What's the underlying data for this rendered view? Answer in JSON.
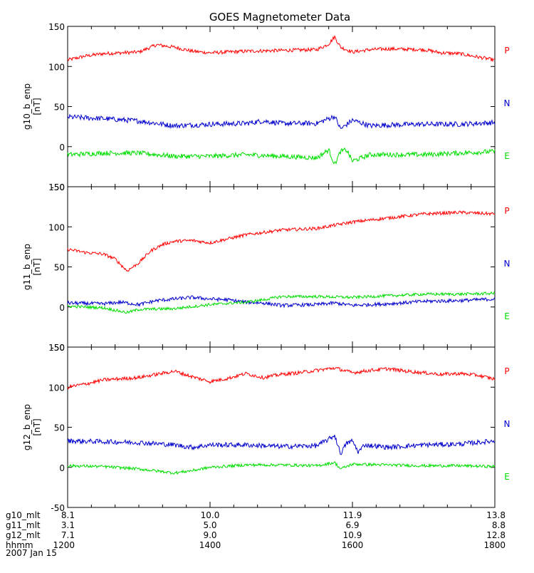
{
  "chart_data": {
    "type": "line",
    "title": "GOES Magnetometer Data",
    "date": "2007 Jan 15",
    "x_range_hhmm": [
      "1200",
      "1800"
    ],
    "panels": [
      {
        "ylabel": "g10_b_enp",
        "unit": "[nT]",
        "ylim": [
          -50,
          150
        ],
        "yticks": [
          "150",
          "100",
          "50",
          "0",
          "-50"
        ],
        "ytick_values": [
          150,
          100,
          50,
          0,
          -50
        ],
        "series": [
          {
            "name": "P",
            "color": "#ff0000",
            "noise": 2.2,
            "points": [
              [
                1200,
                108
              ],
              [
                1215,
                113
              ],
              [
                1230,
                116
              ],
              [
                1245,
                117
              ],
              [
                1300,
                118
              ],
              [
                1315,
                127
              ],
              [
                1330,
                124
              ],
              [
                1345,
                119
              ],
              [
                1400,
                117
              ],
              [
                1430,
                119
              ],
              [
                1500,
                120
              ],
              [
                1530,
                121
              ],
              [
                1540,
                128
              ],
              [
                1545,
                137
              ],
              [
                1550,
                124
              ],
              [
                1600,
                118
              ],
              [
                1615,
                121
              ],
              [
                1630,
                122
              ],
              [
                1700,
                121
              ],
              [
                1715,
                117
              ],
              [
                1730,
                116
              ],
              [
                1745,
                112
              ],
              [
                1800,
                108
              ]
            ]
          },
          {
            "name": "N",
            "color": "#0000cc",
            "noise": 3.2,
            "points": [
              [
                1200,
                37
              ],
              [
                1230,
                35
              ],
              [
                1300,
                32
              ],
              [
                1330,
                26
              ],
              [
                1400,
                28
              ],
              [
                1430,
                29
              ],
              [
                1445,
                32
              ],
              [
                1500,
                29
              ],
              [
                1530,
                29
              ],
              [
                1545,
                38
              ],
              [
                1550,
                22
              ],
              [
                1600,
                33
              ],
              [
                1615,
                26
              ],
              [
                1630,
                27
              ],
              [
                1700,
                28
              ],
              [
                1730,
                28
              ],
              [
                1800,
                30
              ]
            ]
          },
          {
            "name": "E",
            "color": "#00dd00",
            "noise": 3.0,
            "points": [
              [
                1200,
                -10
              ],
              [
                1230,
                -8
              ],
              [
                1300,
                -8
              ],
              [
                1330,
                -12
              ],
              [
                1400,
                -12
              ],
              [
                1430,
                -10
              ],
              [
                1500,
                -12
              ],
              [
                1530,
                -14
              ],
              [
                1540,
                -4
              ],
              [
                1545,
                -22
              ],
              [
                1550,
                -6
              ],
              [
                1555,
                -4
              ],
              [
                1600,
                -18
              ],
              [
                1615,
                -10
              ],
              [
                1630,
                -10
              ],
              [
                1700,
                -10
              ],
              [
                1730,
                -8
              ],
              [
                1800,
                -6
              ]
            ]
          }
        ]
      },
      {
        "ylabel": "g11_b_enp",
        "unit": "[nT]",
        "ylim": [
          -50,
          150
        ],
        "yticks": [
          "150",
          "100",
          "50",
          "0",
          "-50"
        ],
        "ytick_values": [
          150,
          100,
          50,
          0,
          -50
        ],
        "series": [
          {
            "name": "P",
            "color": "#ff0000",
            "noise": 2.0,
            "points": [
              [
                1200,
                72
              ],
              [
                1215,
                68
              ],
              [
                1230,
                66
              ],
              [
                1240,
                60
              ],
              [
                1250,
                45
              ],
              [
                1300,
                55
              ],
              [
                1310,
                70
              ],
              [
                1320,
                78
              ],
              [
                1330,
                82
              ],
              [
                1345,
                83
              ],
              [
                1400,
                80
              ],
              [
                1415,
                85
              ],
              [
                1430,
                90
              ],
              [
                1500,
                96
              ],
              [
                1530,
                98
              ],
              [
                1600,
                106
              ],
              [
                1630,
                111
              ],
              [
                1700,
                116
              ],
              [
                1730,
                118
              ],
              [
                1800,
                116
              ]
            ]
          },
          {
            "name": "N",
            "color": "#0000cc",
            "noise": 2.2,
            "points": [
              [
                1200,
                5
              ],
              [
                1230,
                4
              ],
              [
                1245,
                6
              ],
              [
                1300,
                3
              ],
              [
                1315,
                8
              ],
              [
                1330,
                10
              ],
              [
                1345,
                12
              ],
              [
                1400,
                10
              ],
              [
                1415,
                9
              ],
              [
                1430,
                6
              ],
              [
                1445,
                5
              ],
              [
                1500,
                2
              ],
              [
                1530,
                3
              ],
              [
                1545,
                5
              ],
              [
                1600,
                2
              ],
              [
                1630,
                4
              ],
              [
                1700,
                7
              ],
              [
                1730,
                8
              ],
              [
                1800,
                10
              ]
            ]
          },
          {
            "name": "E",
            "color": "#00dd00",
            "noise": 1.8,
            "points": [
              [
                1200,
                1
              ],
              [
                1230,
                -1
              ],
              [
                1250,
                -7
              ],
              [
                1300,
                -3
              ],
              [
                1330,
                -2
              ],
              [
                1400,
                3
              ],
              [
                1430,
                6
              ],
              [
                1445,
                9
              ],
              [
                1500,
                13
              ],
              [
                1530,
                13
              ],
              [
                1600,
                12
              ],
              [
                1630,
                14
              ],
              [
                1700,
                16
              ],
              [
                1730,
                16
              ],
              [
                1800,
                17
              ]
            ]
          }
        ]
      },
      {
        "ylabel": "g12_b_enp",
        "unit": "[nT]",
        "ylim": [
          -50,
          150
        ],
        "yticks": [
          "150",
          "100",
          "50",
          "0",
          "-50"
        ],
        "ytick_values": [
          150,
          100,
          50,
          0,
          -50
        ],
        "series": [
          {
            "name": "P",
            "color": "#ff0000",
            "noise": 2.2,
            "points": [
              [
                1200,
                100
              ],
              [
                1215,
                104
              ],
              [
                1230,
                109
              ],
              [
                1300,
                112
              ],
              [
                1315,
                116
              ],
              [
                1330,
                120
              ],
              [
                1345,
                113
              ],
              [
                1400,
                107
              ],
              [
                1415,
                111
              ],
              [
                1430,
                117
              ],
              [
                1445,
                112
              ],
              [
                1500,
                116
              ],
              [
                1515,
                118
              ],
              [
                1530,
                121
              ],
              [
                1545,
                124
              ],
              [
                1600,
                118
              ],
              [
                1615,
                121
              ],
              [
                1630,
                123
              ],
              [
                1645,
                120
              ],
              [
                1700,
                118
              ],
              [
                1715,
                116
              ],
              [
                1730,
                117
              ],
              [
                1745,
                115
              ],
              [
                1800,
                110
              ]
            ]
          },
          {
            "name": "N",
            "color": "#0000cc",
            "noise": 3.0,
            "points": [
              [
                1200,
                33
              ],
              [
                1230,
                32
              ],
              [
                1300,
                31
              ],
              [
                1330,
                28
              ],
              [
                1345,
                25
              ],
              [
                1400,
                28
              ],
              [
                1430,
                28
              ],
              [
                1500,
                26
              ],
              [
                1530,
                27
              ],
              [
                1540,
                35
              ],
              [
                1545,
                40
              ],
              [
                1550,
                17
              ],
              [
                1555,
                30
              ],
              [
                1600,
                33
              ],
              [
                1605,
                19
              ],
              [
                1610,
                28
              ],
              [
                1630,
                25
              ],
              [
                1700,
                28
              ],
              [
                1730,
                29
              ],
              [
                1800,
                33
              ]
            ]
          },
          {
            "name": "E",
            "color": "#00dd00",
            "noise": 1.8,
            "points": [
              [
                1200,
                2
              ],
              [
                1230,
                1
              ],
              [
                1300,
                -2
              ],
              [
                1330,
                -7
              ],
              [
                1345,
                -4
              ],
              [
                1400,
                0
              ],
              [
                1430,
                3
              ],
              [
                1500,
                3
              ],
              [
                1530,
                2
              ],
              [
                1545,
                6
              ],
              [
                1550,
                -2
              ],
              [
                1600,
                4
              ],
              [
                1630,
                3
              ],
              [
                1700,
                2
              ],
              [
                1730,
                2
              ],
              [
                1800,
                1
              ]
            ]
          }
        ]
      }
    ],
    "x_rows": [
      {
        "label": "g10_mlt",
        "values": [
          "8.1",
          "10.0",
          "11.9",
          "13.8"
        ]
      },
      {
        "label": "g11_mlt",
        "values": [
          "3.1",
          "5.0",
          "6.9",
          "8.8"
        ]
      },
      {
        "label": "g12_mlt",
        "values": [
          "7.1",
          "9.0",
          "10.9",
          "12.8"
        ]
      },
      {
        "label": "hhmm",
        "values": [
          "1200",
          "1400",
          "1600",
          "1800"
        ]
      }
    ],
    "x_tick_values": [
      1200,
      1400,
      1600,
      1800
    ]
  }
}
